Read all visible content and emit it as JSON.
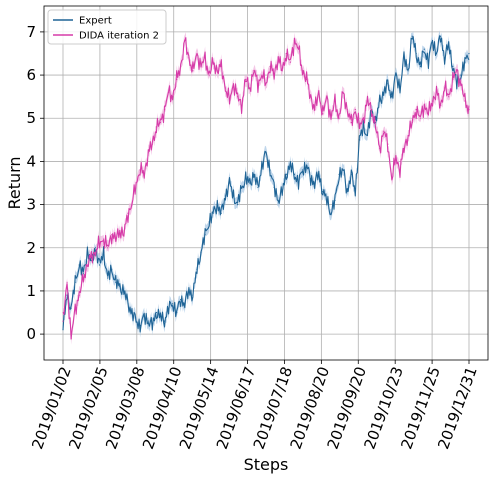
{
  "chart_data": {
    "type": "line",
    "title": "",
    "xlabel": "Steps",
    "ylabel": "Return",
    "ylim": [
      -0.6,
      7.6
    ],
    "yticks": [
      0,
      1,
      2,
      3,
      4,
      5,
      6,
      7
    ],
    "xticks": [
      "2019/01/02",
      "2019/02/05",
      "2019/03/08",
      "2019/04/10",
      "2019/05/14",
      "2019/06/17",
      "2019/07/18",
      "2019/08/20",
      "2019/09/20",
      "2019/10/23",
      "2019/11/25",
      "2019/12/31"
    ],
    "grid": true,
    "legend_position": "upper left",
    "x_sample": "fraction of the year (0 = 2019/01/02, 1 = 2019/12/31)",
    "series": [
      {
        "name": "Expert",
        "color": "#1f6496",
        "band_color": "#aac8e4",
        "points": [
          [
            0,
            0.1
          ],
          [
            0.01,
            0.9
          ],
          [
            0.02,
            0.6
          ],
          [
            0.03,
            1.2
          ],
          [
            0.04,
            1.6
          ],
          [
            0.05,
            1.4
          ],
          [
            0.06,
            1.9
          ],
          [
            0.07,
            1.7
          ],
          [
            0.08,
            2.0
          ],
          [
            0.09,
            1.6
          ],
          [
            0.1,
            1.9
          ],
          [
            0.11,
            1.3
          ],
          [
            0.12,
            1.5
          ],
          [
            0.13,
            1.2
          ],
          [
            0.14,
            1.1
          ],
          [
            0.15,
            1.0
          ],
          [
            0.16,
            0.7
          ],
          [
            0.17,
            0.5
          ],
          [
            0.18,
            0.3
          ],
          [
            0.19,
            0.2
          ],
          [
            0.2,
            0.4
          ],
          [
            0.21,
            0.3
          ],
          [
            0.22,
            0.2
          ],
          [
            0.23,
            0.5
          ],
          [
            0.24,
            0.4
          ],
          [
            0.25,
            0.3
          ],
          [
            0.26,
            0.6
          ],
          [
            0.27,
            0.7
          ],
          [
            0.28,
            0.5
          ],
          [
            0.29,
            0.8
          ],
          [
            0.3,
            0.7
          ],
          [
            0.31,
            1.0
          ],
          [
            0.32,
            0.9
          ],
          [
            0.33,
            1.5
          ],
          [
            0.34,
            1.9
          ],
          [
            0.35,
            2.3
          ],
          [
            0.36,
            2.6
          ],
          [
            0.37,
            2.8
          ],
          [
            0.38,
            3.0
          ],
          [
            0.39,
            2.8
          ],
          [
            0.4,
            3.2
          ],
          [
            0.41,
            3.5
          ],
          [
            0.42,
            3.2
          ],
          [
            0.43,
            3.0
          ],
          [
            0.44,
            3.4
          ],
          [
            0.45,
            3.6
          ],
          [
            0.46,
            3.5
          ],
          [
            0.47,
            3.7
          ],
          [
            0.48,
            3.4
          ],
          [
            0.49,
            3.9
          ],
          [
            0.5,
            4.2
          ],
          [
            0.51,
            3.8
          ],
          [
            0.52,
            3.4
          ],
          [
            0.53,
            3.1
          ],
          [
            0.54,
            3.3
          ],
          [
            0.55,
            3.7
          ],
          [
            0.56,
            3.9
          ],
          [
            0.57,
            3.7
          ],
          [
            0.58,
            3.5
          ],
          [
            0.59,
            3.8
          ],
          [
            0.6,
            3.9
          ],
          [
            0.61,
            3.6
          ],
          [
            0.62,
            3.5
          ],
          [
            0.63,
            3.7
          ],
          [
            0.64,
            3.3
          ],
          [
            0.65,
            3.1
          ],
          [
            0.66,
            2.8
          ],
          [
            0.67,
            3.1
          ],
          [
            0.68,
            3.7
          ],
          [
            0.69,
            3.8
          ],
          [
            0.7,
            3.3
          ],
          [
            0.71,
            3.7
          ],
          [
            0.72,
            3.3
          ],
          [
            0.73,
            4.5
          ],
          [
            0.74,
            4.8
          ],
          [
            0.75,
            4.6
          ],
          [
            0.76,
            5.2
          ],
          [
            0.77,
            4.9
          ],
          [
            0.78,
            5.4
          ],
          [
            0.79,
            5.6
          ],
          [
            0.8,
            5.8
          ],
          [
            0.81,
            5.5
          ],
          [
            0.82,
            6.0
          ],
          [
            0.83,
            5.7
          ],
          [
            0.84,
            6.4
          ],
          [
            0.85,
            6.1
          ],
          [
            0.86,
            6.9
          ],
          [
            0.87,
            6.5
          ],
          [
            0.88,
            6.2
          ],
          [
            0.89,
            6.6
          ],
          [
            0.9,
            6.3
          ],
          [
            0.91,
            6.8
          ],
          [
            0.92,
            6.5
          ],
          [
            0.93,
            6.9
          ],
          [
            0.94,
            6.4
          ],
          [
            0.95,
            6.7
          ],
          [
            0.96,
            6.2
          ],
          [
            0.97,
            5.8
          ],
          [
            0.98,
            6.0
          ],
          [
            0.99,
            6.3
          ],
          [
            1.0,
            6.5
          ]
        ]
      },
      {
        "name": "DIDA iteration 2",
        "color": "#d63ba8",
        "band_color": "#f0b6df",
        "points": [
          [
            0,
            0.3
          ],
          [
            0.01,
            1.2
          ],
          [
            0.02,
            -0.1
          ],
          [
            0.03,
            0.6
          ],
          [
            0.04,
            0.9
          ],
          [
            0.05,
            1.3
          ],
          [
            0.06,
            1.6
          ],
          [
            0.07,
            1.8
          ],
          [
            0.08,
            1.9
          ],
          [
            0.09,
            2.1
          ],
          [
            0.1,
            2.2
          ],
          [
            0.11,
            2.0
          ],
          [
            0.12,
            2.3
          ],
          [
            0.13,
            2.2
          ],
          [
            0.14,
            2.4
          ],
          [
            0.15,
            2.3
          ],
          [
            0.16,
            2.8
          ],
          [
            0.17,
            3.0
          ],
          [
            0.18,
            3.5
          ],
          [
            0.19,
            3.8
          ],
          [
            0.2,
            3.7
          ],
          [
            0.21,
            4.2
          ],
          [
            0.22,
            4.4
          ],
          [
            0.23,
            4.8
          ],
          [
            0.24,
            4.9
          ],
          [
            0.25,
            5.2
          ],
          [
            0.26,
            5.6
          ],
          [
            0.27,
            5.5
          ],
          [
            0.28,
            5.9
          ],
          [
            0.29,
            6.2
          ],
          [
            0.3,
            6.8
          ],
          [
            0.31,
            6.4
          ],
          [
            0.32,
            6.1
          ],
          [
            0.33,
            6.5
          ],
          [
            0.34,
            6.2
          ],
          [
            0.35,
            6.4
          ],
          [
            0.36,
            6.0
          ],
          [
            0.37,
            6.3
          ],
          [
            0.38,
            6.1
          ],
          [
            0.39,
            6.2
          ],
          [
            0.4,
            5.7
          ],
          [
            0.41,
            5.4
          ],
          [
            0.42,
            5.8
          ],
          [
            0.43,
            5.5
          ],
          [
            0.44,
            5.3
          ],
          [
            0.45,
            5.9
          ],
          [
            0.46,
            5.7
          ],
          [
            0.47,
            6.1
          ],
          [
            0.48,
            5.8
          ],
          [
            0.49,
            6.0
          ],
          [
            0.5,
            5.8
          ],
          [
            0.51,
            6.2
          ],
          [
            0.52,
            6.0
          ],
          [
            0.53,
            6.4
          ],
          [
            0.54,
            6.1
          ],
          [
            0.55,
            6.5
          ],
          [
            0.56,
            6.3
          ],
          [
            0.57,
            6.8
          ],
          [
            0.58,
            6.6
          ],
          [
            0.59,
            6.1
          ],
          [
            0.6,
            5.9
          ],
          [
            0.61,
            5.5
          ],
          [
            0.62,
            5.2
          ],
          [
            0.63,
            5.6
          ],
          [
            0.64,
            5.1
          ],
          [
            0.65,
            5.5
          ],
          [
            0.66,
            5.0
          ],
          [
            0.67,
            5.4
          ],
          [
            0.68,
            5.0
          ],
          [
            0.69,
            5.6
          ],
          [
            0.7,
            5.2
          ],
          [
            0.71,
            4.9
          ],
          [
            0.72,
            5.2
          ],
          [
            0.73,
            4.8
          ],
          [
            0.74,
            5.0
          ],
          [
            0.75,
            5.4
          ],
          [
            0.76,
            5.2
          ],
          [
            0.77,
            4.8
          ],
          [
            0.78,
            4.3
          ],
          [
            0.79,
            4.7
          ],
          [
            0.8,
            4.4
          ],
          [
            0.81,
            3.6
          ],
          [
            0.82,
            4.1
          ],
          [
            0.83,
            3.8
          ],
          [
            0.84,
            4.3
          ],
          [
            0.85,
            4.6
          ],
          [
            0.86,
            4.9
          ],
          [
            0.87,
            5.2
          ],
          [
            0.88,
            5.0
          ],
          [
            0.89,
            5.3
          ],
          [
            0.9,
            5.1
          ],
          [
            0.91,
            5.4
          ],
          [
            0.92,
            5.6
          ],
          [
            0.93,
            5.3
          ],
          [
            0.94,
            5.7
          ],
          [
            0.95,
            5.5
          ],
          [
            0.96,
            5.9
          ],
          [
            0.97,
            6.1
          ],
          [
            0.98,
            5.8
          ],
          [
            0.99,
            5.4
          ],
          [
            1.0,
            5.2
          ]
        ]
      }
    ]
  }
}
